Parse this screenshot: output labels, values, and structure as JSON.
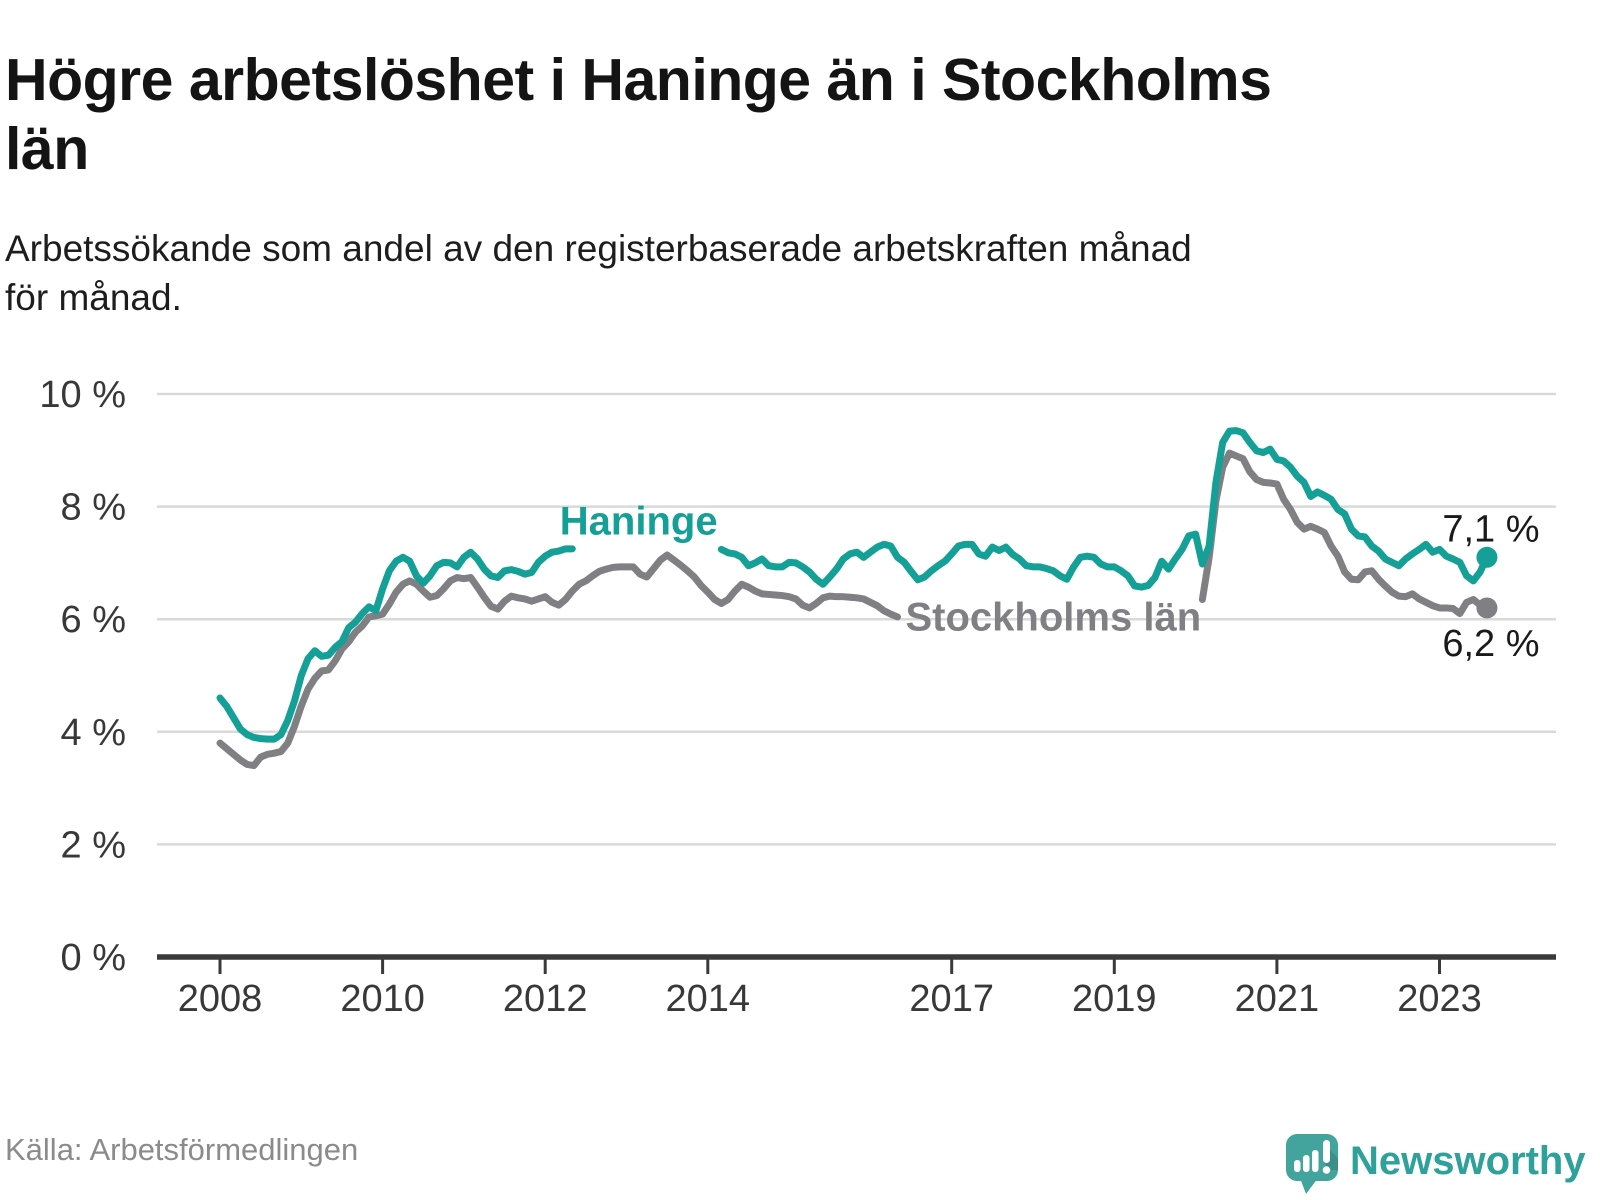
{
  "header": {
    "title": "Högre arbetslöshet i Haninge än i Stockholms\nlän",
    "subtitle": "Arbetssökande som andel av den registerbaserade arbetskraften månad\nför månad."
  },
  "footer": {
    "source": "Källa: Arbetsförmedlingen",
    "brand": "Newsworthy"
  },
  "colors": {
    "haninge": "#14a096",
    "stockholm": "#808084",
    "axis": "#3a3a3a",
    "grid": "#d9d9d9",
    "tick_text": "#383838",
    "value_text": "#1a1a1a",
    "brand_teal": "#2ea19a",
    "logo_fill": "#42a49d"
  },
  "chart_data": {
    "type": "line",
    "title": "Högre arbetslöshet i Haninge än i Stockholms län",
    "unit": "%",
    "x_start_year": 2008,
    "x_interval": "monthly",
    "x_end": "2023-08",
    "ylim": [
      0,
      10
    ],
    "grid": true,
    "ytick_values": [
      0,
      2,
      4,
      6,
      8,
      10
    ],
    "ytick_labels": [
      "0 %",
      "2 %",
      "4 %",
      "6 %",
      "8 %",
      "10 %"
    ],
    "xtick_years": [
      2008,
      2010,
      2012,
      2014,
      2017,
      2019,
      2021,
      2023
    ],
    "note": "null values = line segment hidden behind inline series label in original graphic",
    "series": [
      {
        "name": "Haninge",
        "color": "#14a096",
        "end_label": "7,1 %",
        "end_value": 7.1,
        "end_label_offset": [
          4,
          -16
        ],
        "label_pos": {
          "x": 2013.15,
          "y": 7.75
        },
        "values_by_year": {
          "2008": [
            4.6,
            4.45,
            4.25,
            4.05,
            3.95,
            3.9,
            3.88,
            3.87,
            3.87,
            3.95,
            4.2,
            4.55
          ],
          "2009": [
            5.0,
            5.3,
            5.44,
            5.34,
            5.36,
            5.5,
            5.6,
            5.85,
            5.95,
            6.1,
            6.22,
            6.15
          ],
          "2010": [
            6.54,
            6.86,
            7.03,
            7.1,
            7.03,
            6.77,
            6.64,
            6.77,
            6.95,
            7.01,
            7.0,
            6.93
          ],
          "2011": [
            7.1,
            7.19,
            7.07,
            6.89,
            6.77,
            6.74,
            6.86,
            6.88,
            6.85,
            6.8,
            6.83,
            7.01
          ],
          "2012": [
            7.12,
            7.19,
            7.21,
            7.25,
            7.25,
            null,
            null,
            null,
            null,
            null,
            null,
            null
          ],
          "2013": [
            null,
            null,
            null,
            null,
            null,
            null,
            null,
            null,
            null,
            null,
            null,
            null
          ],
          "2014": [
            null,
            null,
            7.24,
            7.18,
            7.16,
            7.1,
            6.95,
            7.0,
            7.07,
            6.95,
            6.93,
            6.93
          ],
          "2015": [
            7.01,
            7.0,
            6.93,
            6.84,
            6.71,
            6.62,
            6.75,
            6.89,
            7.07,
            7.16,
            7.19,
            7.1
          ],
          "2016": [
            7.19,
            7.28,
            7.33,
            7.3,
            7.1,
            7.01,
            6.85,
            6.7,
            6.75,
            6.86,
            6.95,
            7.03
          ],
          "2017": [
            7.16,
            7.3,
            7.33,
            7.33,
            7.16,
            7.12,
            7.28,
            7.22,
            7.28,
            7.15,
            7.07,
            6.95
          ],
          "2018": [
            6.93,
            6.93,
            6.9,
            6.86,
            6.77,
            6.71,
            6.93,
            7.1,
            7.12,
            7.1,
            6.98,
            6.93
          ],
          "2019": [
            6.93,
            6.86,
            6.77,
            6.59,
            6.57,
            6.6,
            6.74,
            7.03,
            6.89,
            7.07,
            7.24,
            7.48
          ],
          "2020": [
            7.51,
            6.98,
            7.3,
            8.43,
            9.14,
            9.34,
            9.35,
            9.31,
            9.14,
            8.99,
            8.96,
            9.02
          ],
          "2021": [
            8.84,
            8.81,
            8.7,
            8.54,
            8.43,
            8.18,
            8.26,
            8.2,
            8.13,
            7.95,
            7.87,
            7.6
          ],
          "2022": [
            7.48,
            7.46,
            7.3,
            7.21,
            7.07,
            7.01,
            6.95,
            7.07,
            7.16,
            7.24,
            7.33,
            7.19
          ],
          "2023": [
            7.24,
            7.12,
            7.07,
            7.01,
            6.77,
            6.68,
            6.84,
            7.1
          ]
        }
      },
      {
        "name": "Stockholms län",
        "color": "#808084",
        "end_label": "6,2 %",
        "end_value": 6.2,
        "end_label_offset": [
          4,
          48
        ],
        "label_pos": {
          "x": 2018.25,
          "y": 6.05
        },
        "values_by_year": {
          "2008": [
            3.8,
            3.7,
            3.6,
            3.5,
            3.42,
            3.4,
            3.55,
            3.6,
            3.62,
            3.65,
            3.8,
            4.1
          ],
          "2009": [
            4.46,
            4.76,
            4.95,
            5.08,
            5.1,
            5.26,
            5.47,
            5.6,
            5.77,
            5.88,
            6.04,
            6.06
          ],
          "2010": [
            6.09,
            6.27,
            6.48,
            6.62,
            6.68,
            6.62,
            6.5,
            6.39,
            6.42,
            6.54,
            6.68,
            6.74
          ],
          "2011": [
            6.72,
            6.74,
            6.57,
            6.39,
            6.23,
            6.18,
            6.32,
            6.41,
            6.38,
            6.36,
            6.32,
            6.36
          ],
          "2012": [
            6.4,
            6.3,
            6.25,
            6.35,
            6.5,
            6.62,
            6.68,
            6.77,
            6.85,
            6.89,
            6.92,
            6.93
          ],
          "2013": [
            6.93,
            6.93,
            6.8,
            6.75,
            6.9,
            7.05,
            7.14,
            7.05,
            6.96,
            6.86,
            6.75,
            6.6
          ],
          "2014": [
            6.48,
            6.35,
            6.28,
            6.35,
            6.5,
            6.62,
            6.57,
            6.5,
            6.45,
            6.44,
            6.43,
            6.42
          ],
          "2015": [
            6.4,
            6.36,
            6.25,
            6.2,
            6.28,
            6.38,
            6.41,
            6.4,
            6.4,
            6.39,
            6.38,
            6.36
          ],
          "2016": [
            6.3,
            6.24,
            6.15,
            6.09,
            6.04,
            null,
            null,
            null,
            null,
            null,
            null,
            null
          ],
          "2017": [
            null,
            null,
            null,
            null,
            null,
            null,
            null,
            null,
            null,
            null,
            null,
            null
          ],
          "2018": [
            null,
            null,
            null,
            null,
            null,
            null,
            null,
            null,
            null,
            null,
            null,
            null
          ],
          "2019": [
            null,
            null,
            null,
            null,
            null,
            null,
            null,
            null,
            null,
            null,
            null,
            null
          ],
          "2020": [
            null,
            6.35,
            7.1,
            8.1,
            8.7,
            8.95,
            8.9,
            8.85,
            8.62,
            8.48,
            8.43,
            8.42
          ],
          "2021": [
            8.4,
            8.13,
            7.95,
            7.72,
            7.6,
            7.65,
            7.6,
            7.54,
            7.3,
            7.12,
            6.84,
            6.71
          ],
          "2022": [
            6.7,
            6.84,
            6.86,
            6.71,
            6.59,
            6.48,
            6.41,
            6.4,
            6.45,
            6.36,
            6.3,
            6.24
          ],
          "2023": [
            6.2,
            6.2,
            6.19,
            6.1,
            6.3,
            6.35,
            6.25,
            6.2
          ]
        }
      }
    ]
  }
}
